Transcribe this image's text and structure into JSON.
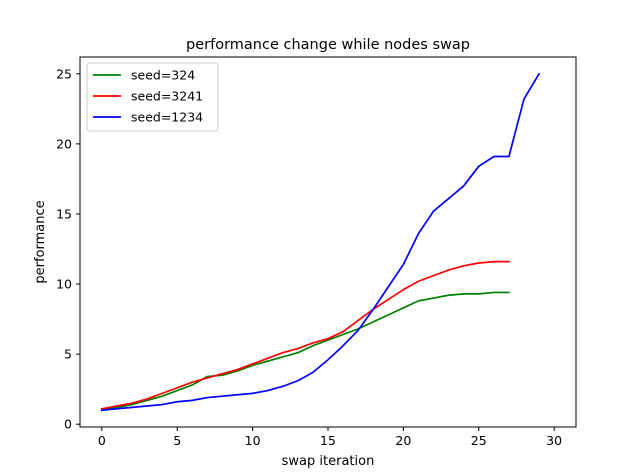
{
  "chart_data": {
    "type": "line",
    "title": "performance change while nodes swap",
    "xlabel": "swap iteration",
    "ylabel": "performance",
    "xlim": [
      -1.45,
      31.45
    ],
    "ylim": [
      -0.2,
      26.2
    ],
    "xticks": [
      0,
      5,
      10,
      15,
      20,
      25,
      30
    ],
    "yticks": [
      0,
      5,
      10,
      15,
      20,
      25
    ],
    "grid": false,
    "legend_position": "upper left",
    "series": [
      {
        "name": "seed=324",
        "color": "#008000",
        "x": [
          0,
          1,
          2,
          3,
          4,
          5,
          6,
          7,
          8,
          9,
          10,
          11,
          12,
          13,
          14,
          15,
          16,
          17,
          18,
          19,
          20,
          21,
          22,
          23,
          24,
          25,
          26,
          27
        ],
        "values": [
          1.0,
          1.2,
          1.4,
          1.7,
          2.0,
          2.4,
          2.8,
          3.4,
          3.5,
          3.8,
          4.2,
          4.5,
          4.8,
          5.1,
          5.6,
          6.0,
          6.4,
          6.8,
          7.3,
          7.8,
          8.3,
          8.8,
          9.0,
          9.2,
          9.3,
          9.3,
          9.4,
          9.4
        ]
      },
      {
        "name": "seed=3241",
        "color": "#ff0000",
        "x": [
          0,
          1,
          2,
          3,
          4,
          5,
          6,
          7,
          8,
          9,
          10,
          11,
          12,
          13,
          14,
          15,
          16,
          17,
          18,
          19,
          20,
          21,
          22,
          23,
          24,
          25,
          26,
          27
        ],
        "values": [
          1.1,
          1.3,
          1.5,
          1.8,
          2.2,
          2.6,
          3.0,
          3.3,
          3.6,
          3.9,
          4.3,
          4.7,
          5.1,
          5.4,
          5.8,
          6.1,
          6.6,
          7.4,
          8.2,
          8.9,
          9.6,
          10.2,
          10.6,
          11.0,
          11.3,
          11.5,
          11.6,
          11.6
        ]
      },
      {
        "name": "seed=1234",
        "color": "#0000ff",
        "x": [
          0,
          1,
          2,
          3,
          4,
          5,
          6,
          7,
          8,
          9,
          10,
          11,
          12,
          13,
          14,
          15,
          16,
          17,
          18,
          19,
          20,
          21,
          22,
          23,
          24,
          25,
          26,
          27,
          28,
          29
        ],
        "values": [
          1.0,
          1.1,
          1.2,
          1.3,
          1.4,
          1.6,
          1.7,
          1.9,
          2.0,
          2.1,
          2.2,
          2.4,
          2.7,
          3.1,
          3.7,
          4.6,
          5.6,
          6.7,
          8.2,
          9.8,
          11.4,
          13.6,
          15.2,
          16.1,
          17.0,
          18.4,
          19.1,
          19.1,
          23.2,
          25.0
        ]
      }
    ]
  }
}
